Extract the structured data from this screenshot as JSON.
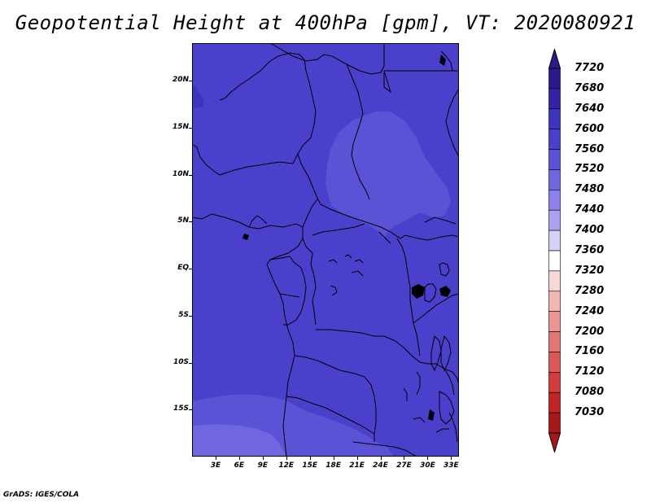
{
  "title": "Geopotential Height at 400hPa [gpm], VT: 2020080921",
  "credit": "GrADS: IGES/COLA",
  "map": {
    "lon_range": [
      0,
      34
    ],
    "lat_range": [
      -20,
      24
    ],
    "y_ticks": [
      {
        "label": "20N",
        "lat": 20
      },
      {
        "label": "15N",
        "lat": 15
      },
      {
        "label": "10N",
        "lat": 10
      },
      {
        "label": "5N",
        "lat": 5
      },
      {
        "label": "EQ",
        "lat": 0
      },
      {
        "label": "5S",
        "lat": -5
      },
      {
        "label": "10S",
        "lat": -10
      },
      {
        "label": "15S",
        "lat": -15
      }
    ],
    "x_ticks": [
      {
        "label": "3E",
        "lon": 3
      },
      {
        "label": "6E",
        "lon": 6
      },
      {
        "label": "9E",
        "lon": 9
      },
      {
        "label": "12E",
        "lon": 12
      },
      {
        "label": "15E",
        "lon": 15
      },
      {
        "label": "18E",
        "lon": 18
      },
      {
        "label": "21E",
        "lon": 21
      },
      {
        "label": "24E",
        "lon": 24
      },
      {
        "label": "27E",
        "lon": 27
      },
      {
        "label": "30E",
        "lon": 30
      },
      {
        "label": "33E",
        "lon": 33
      }
    ]
  },
  "colorbar": {
    "levels": [
      {
        "label": "7720",
        "color": "#2a1a8c"
      },
      {
        "label": "7680",
        "color": "#3322a6"
      },
      {
        "label": "7640",
        "color": "#3d33bd"
      },
      {
        "label": "7600",
        "color": "#4a40cc"
      },
      {
        "label": "7560",
        "color": "#5b52d6"
      },
      {
        "label": "7520",
        "color": "#6f66e0"
      },
      {
        "label": "7480",
        "color": "#8a82ea"
      },
      {
        "label": "7440",
        "color": "#a8a2f0"
      },
      {
        "label": "7400",
        "color": "#d4d2f7"
      },
      {
        "label": "7360",
        "color": "#ffffff"
      },
      {
        "label": "7320",
        "color": "#f9d8d8"
      },
      {
        "label": "7280",
        "color": "#f3b5b5"
      },
      {
        "label": "7240",
        "color": "#ec9494"
      },
      {
        "label": "7200",
        "color": "#e57676"
      },
      {
        "label": "7160",
        "color": "#dc5858"
      },
      {
        "label": "7120",
        "color": "#d23c3c"
      },
      {
        "label": "7080",
        "color": "#c02424"
      },
      {
        "label": "7030",
        "color": "#a81818"
      }
    ]
  }
}
